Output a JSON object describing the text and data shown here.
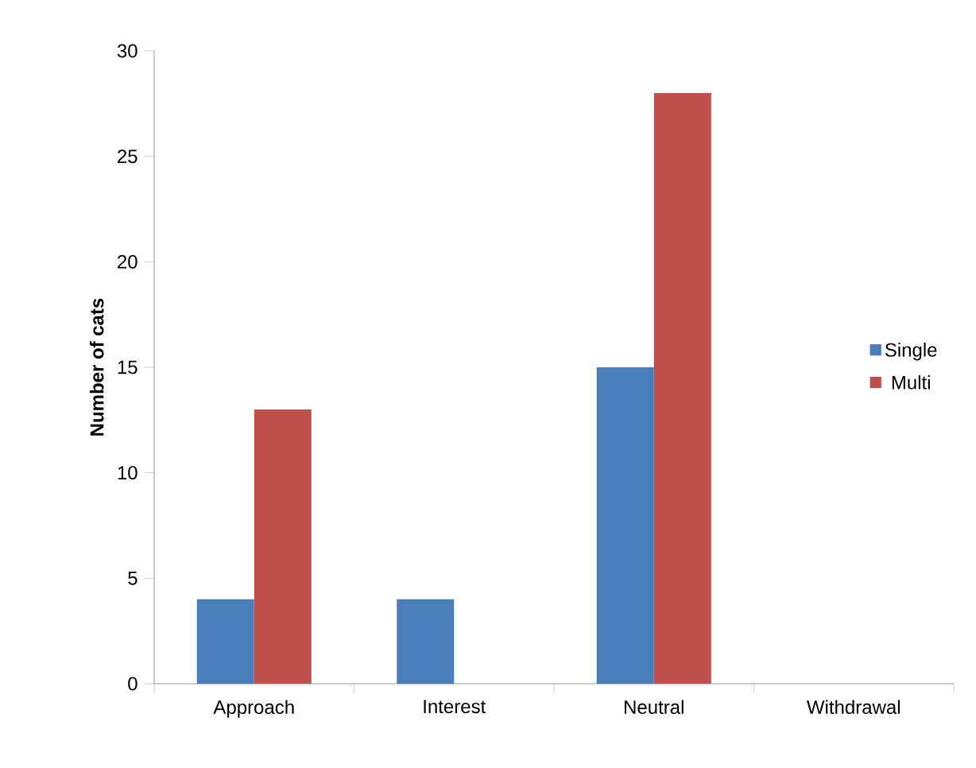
{
  "chart_data": {
    "type": "bar",
    "ylabel": "Number of cats",
    "categories": [
      "Approach",
      "Interest",
      "Neutral",
      "Withdrawal"
    ],
    "series": [
      {
        "name": "Single",
        "color": "#4a7ebb",
        "values": [
          4,
          4,
          15,
          0
        ]
      },
      {
        "name": "Multi",
        "color": "#c0504d",
        "values": [
          13,
          0,
          28,
          0
        ]
      }
    ],
    "ylim": [
      0,
      30
    ],
    "yticks": [
      0,
      5,
      10,
      15,
      20,
      25,
      30
    ],
    "grid": false,
    "legend": "right"
  }
}
